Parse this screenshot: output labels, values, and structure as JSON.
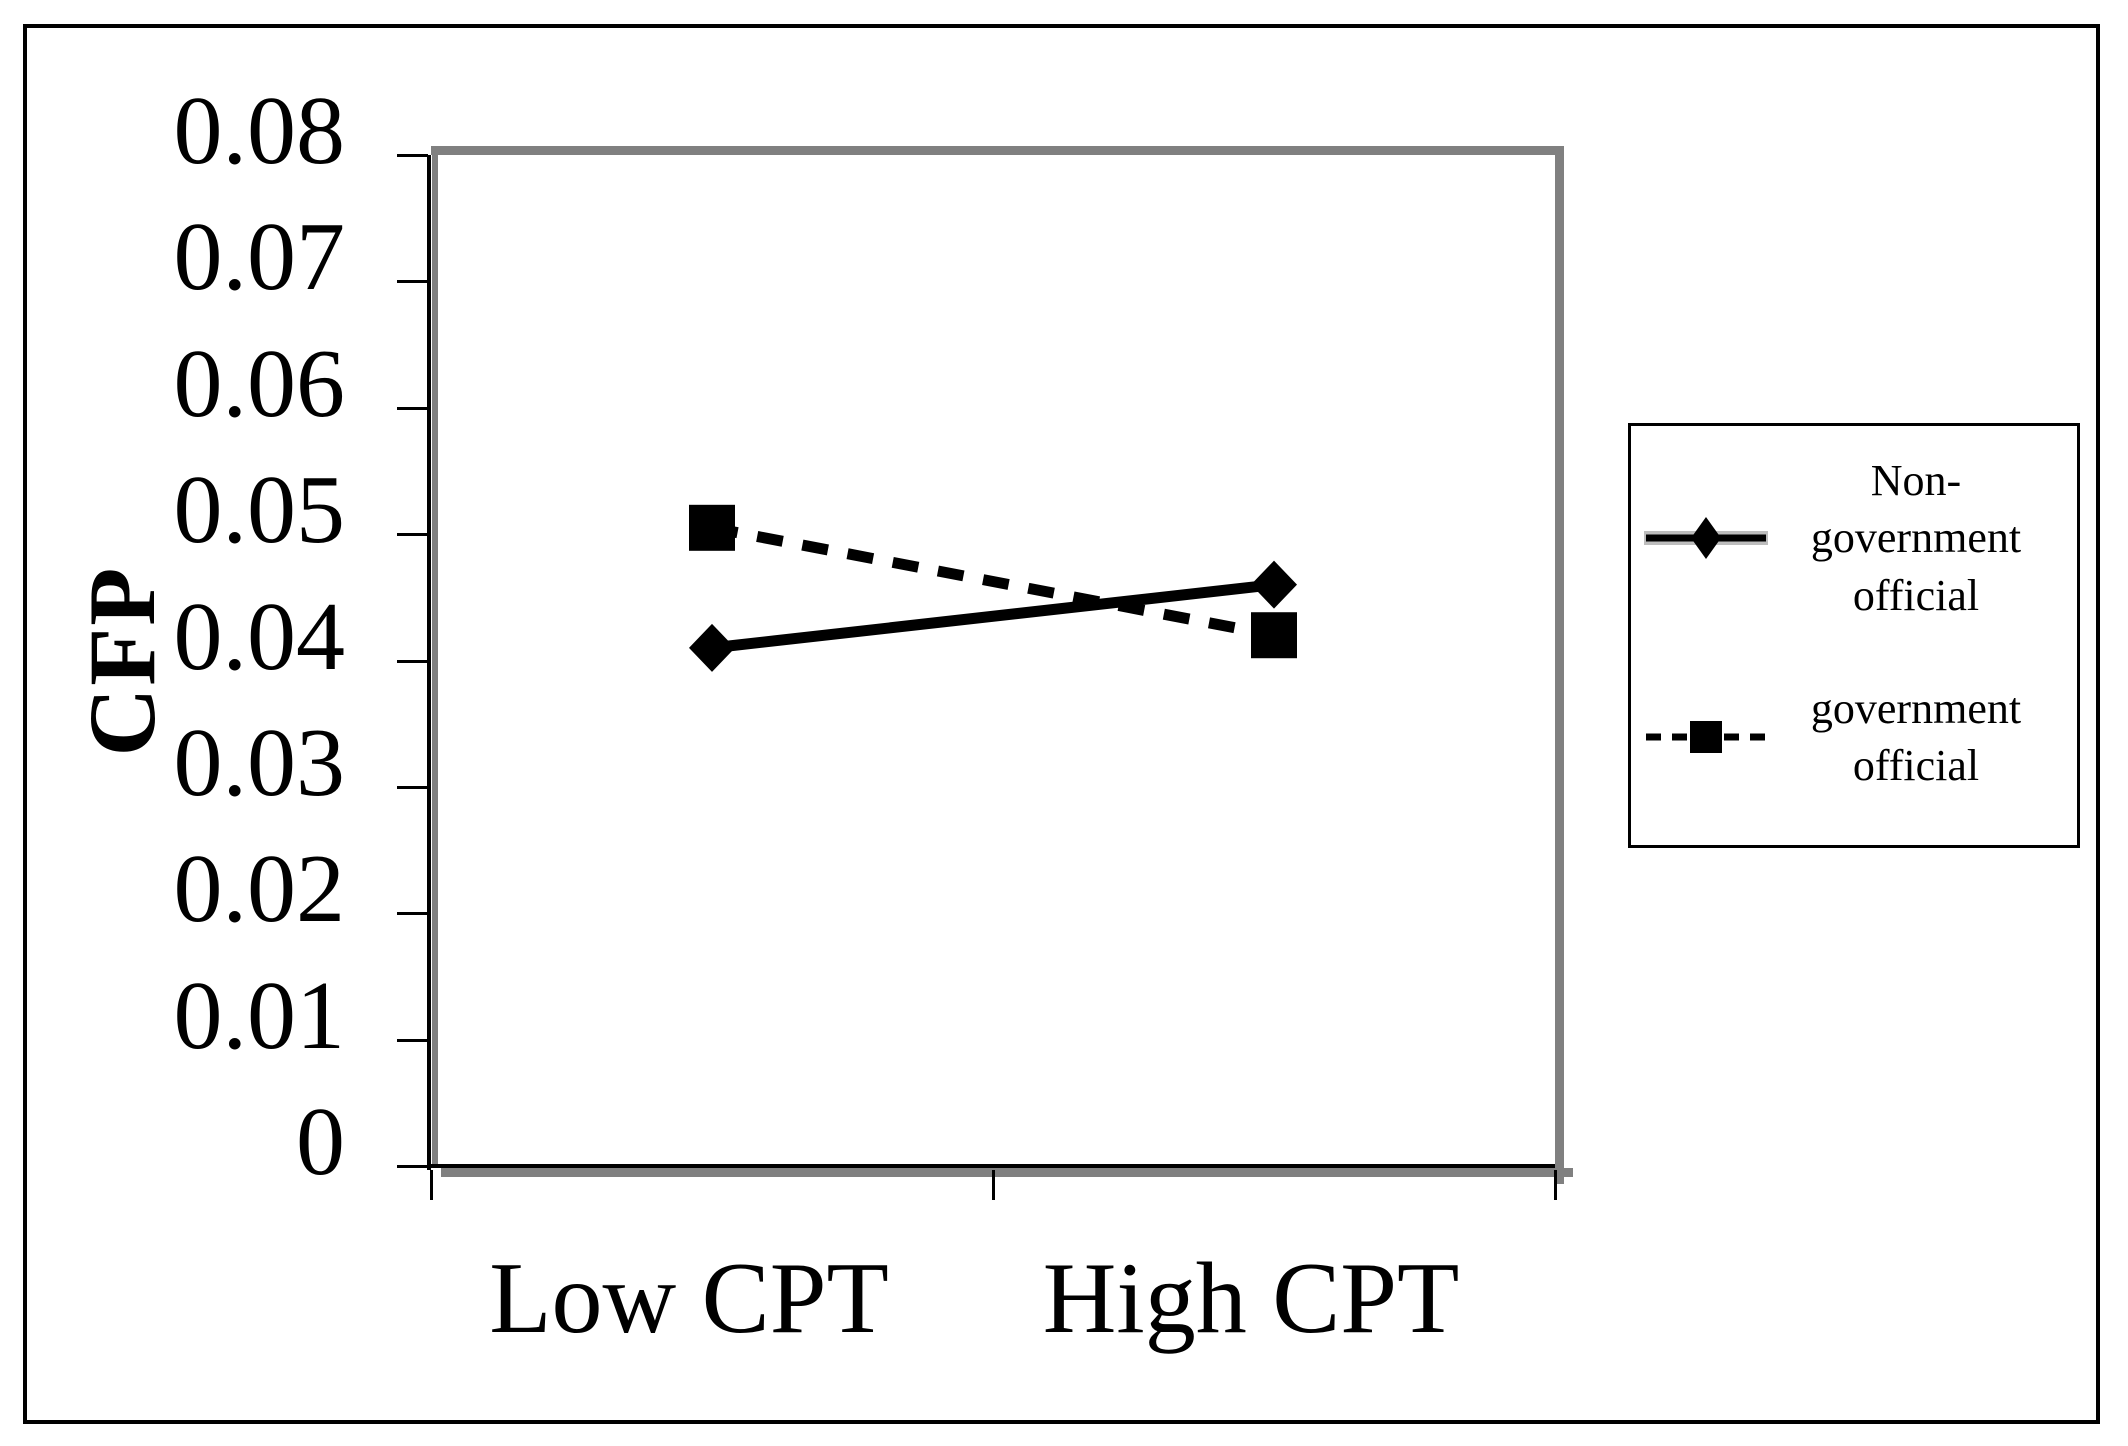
{
  "figure": {
    "background": "#ffffff",
    "border_color": "#000000"
  },
  "chart_data": {
    "type": "line",
    "title": "",
    "categories": [
      "Low CPT",
      "High CPT"
    ],
    "series": [
      {
        "name": "Non-government official",
        "values": [
          0.041,
          0.046
        ],
        "line_style": "solid",
        "marker": "diamond",
        "color": "#000000"
      },
      {
        "name": "government official",
        "values": [
          0.0505,
          0.042
        ],
        "line_style": "dashed",
        "marker": "square",
        "color": "#000000"
      }
    ],
    "xlabel": "",
    "ylabel": "CFP",
    "ylim": [
      0,
      0.08
    ],
    "ytick_labels": [
      "0.08",
      "0.07",
      "0.06",
      "0.05",
      "0.04",
      "0.03",
      "0.02",
      "0.01",
      "0"
    ],
    "grid": false,
    "legend_position": "right",
    "plot_border_color": "#808080",
    "axis_color": "#000000"
  }
}
